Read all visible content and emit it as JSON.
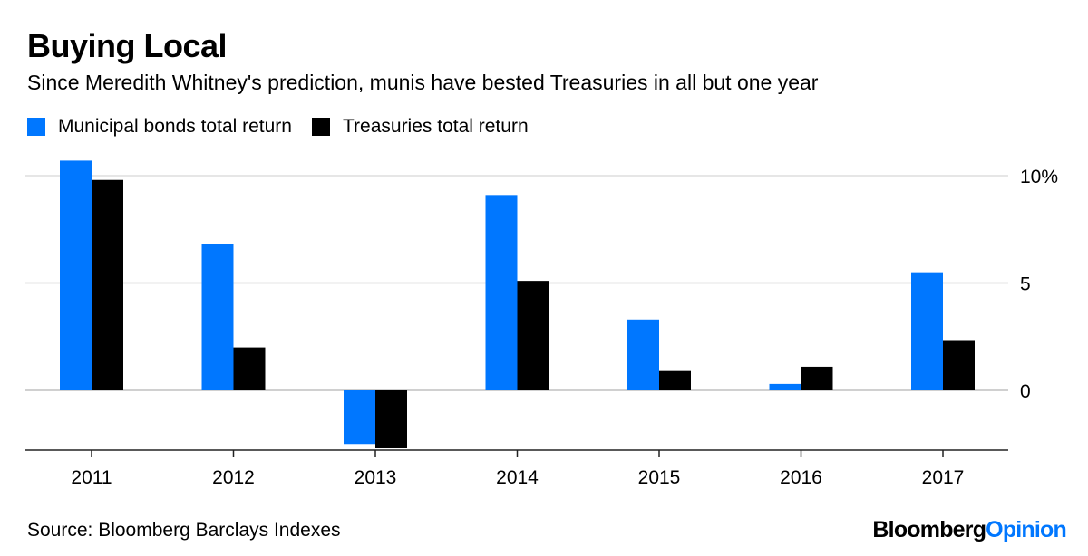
{
  "header": {
    "title": "Buying Local",
    "subtitle": "Since Meredith Whitney's prediction, munis have bested Treasuries in all but one year"
  },
  "footer": {
    "source": "Source: Bloomberg Barclays Indexes",
    "brand_part1": "Bloomberg",
    "brand_part2": "Opinion"
  },
  "colors": {
    "munis": "#0077ff",
    "treasuries": "#000000",
    "grid": "#e6e6e6",
    "axis": "#222222"
  },
  "chart_data": {
    "type": "bar",
    "categories": [
      "2011",
      "2012",
      "2013",
      "2014",
      "2015",
      "2016",
      "2017"
    ],
    "series": [
      {
        "name": "Municipal bonds total return",
        "values": [
          10.7,
          6.8,
          -2.5,
          9.1,
          3.3,
          0.3,
          5.5
        ]
      },
      {
        "name": "Treasuries total return",
        "values": [
          9.8,
          2.0,
          -2.7,
          5.1,
          0.9,
          1.1,
          2.3
        ]
      }
    ],
    "yticks": [
      {
        "value": 0,
        "label": "0"
      },
      {
        "value": 5,
        "label": "5"
      },
      {
        "value": 10,
        "label": "10%"
      }
    ],
    "ylim": [
      -2.7,
      10.7
    ],
    "y_axis_side": "right",
    "grid": true,
    "legend": "top-left"
  }
}
